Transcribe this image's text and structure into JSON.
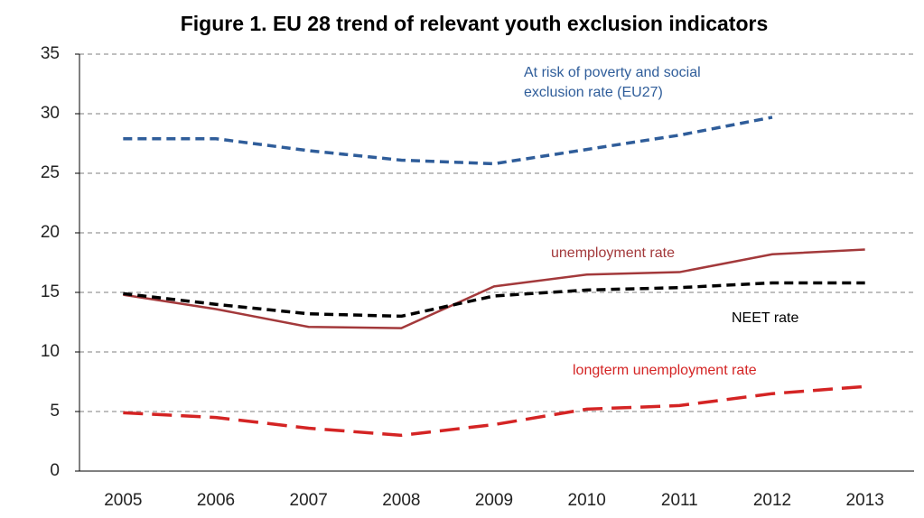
{
  "chart_data": {
    "type": "line",
    "title": "Figure 1. EU 28 trend of relevant youth exclusion indicators",
    "categories": [
      "2005",
      "2006",
      "2007",
      "2008",
      "2009",
      "2010",
      "2011",
      "2012",
      "2013"
    ],
    "series": [
      {
        "name": "At risk of poverty and social exclusion rate (EU27)",
        "color": "#2f5d9a",
        "style": "dashed",
        "values": [
          27.9,
          27.9,
          26.9,
          26.1,
          25.8,
          27.0,
          28.2,
          29.7,
          null
        ]
      },
      {
        "name": "unemployment rate",
        "color": "#a3393b",
        "style": "solid",
        "values": [
          14.8,
          13.6,
          12.1,
          12.0,
          15.5,
          16.5,
          16.7,
          18.2,
          18.6
        ]
      },
      {
        "name": "NEET rate",
        "color": "#000000",
        "style": "dashed",
        "values": [
          14.9,
          14.0,
          13.2,
          13.0,
          14.7,
          15.2,
          15.4,
          15.8,
          15.8
        ]
      },
      {
        "name": "longterm unemployment rate",
        "color": "#d42424",
        "style": "longdash",
        "values": [
          4.9,
          4.5,
          3.6,
          3.0,
          3.9,
          5.2,
          5.5,
          6.5,
          7.1
        ]
      }
    ],
    "ylim": [
      0,
      35
    ],
    "yticks": [
      0,
      5,
      10,
      15,
      20,
      25,
      30,
      35
    ],
    "grid": true
  }
}
